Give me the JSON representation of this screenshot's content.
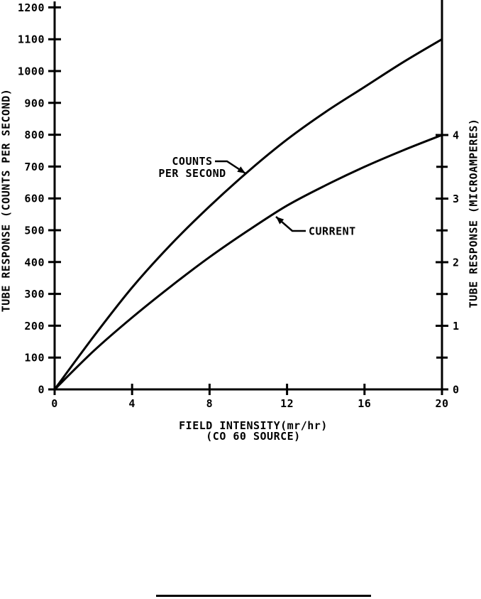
{
  "chart_data": {
    "type": "line",
    "title": "",
    "xlabel": {
      "line1": "FIELD INTENSITY(mr/hr)",
      "line2": "(CO 60 SOURCE)"
    },
    "x_axis": {
      "ticks": [
        0,
        4,
        8,
        12,
        16,
        20
      ],
      "range": [
        0,
        20
      ]
    },
    "left_axis": {
      "title": "TUBE RESPONSE (COUNTS PER SECOND)",
      "ticks": [
        0,
        100,
        200,
        300,
        400,
        500,
        600,
        700,
        800,
        900,
        1000,
        1100,
        1200
      ],
      "range": [
        0,
        1200
      ]
    },
    "right_axis": {
      "title": "TUBE RESPONSE (MICROAMPERES)",
      "major_ticks": [
        0,
        1,
        2,
        3,
        4
      ],
      "minor_tick_step": 0.5,
      "range": [
        0,
        4
      ]
    },
    "grid": false,
    "legend_position": "inline-annotations",
    "series": [
      {
        "name": "COUNTS PER SECOND",
        "axis": "left",
        "x": [
          0,
          2,
          4,
          6,
          8,
          10,
          12,
          14,
          16,
          18,
          20
        ],
        "y": [
          0,
          165,
          320,
          455,
          575,
          685,
          785,
          872,
          950,
          1028,
          1100
        ]
      },
      {
        "name": "CURRENT",
        "axis": "right",
        "x": [
          0,
          2,
          4,
          6,
          8,
          10,
          12,
          14,
          16,
          18,
          20
        ],
        "y": [
          0,
          0.6,
          1.13,
          1.62,
          2.08,
          2.5,
          2.89,
          3.21,
          3.5,
          3.76,
          4.0
        ]
      }
    ],
    "series_labels": {
      "counts_line1": "COUNTS",
      "counts_line2": "PER SECOND",
      "current": "CURRENT"
    },
    "colors": {
      "ink": "#000000",
      "background": "#ffffff"
    }
  }
}
